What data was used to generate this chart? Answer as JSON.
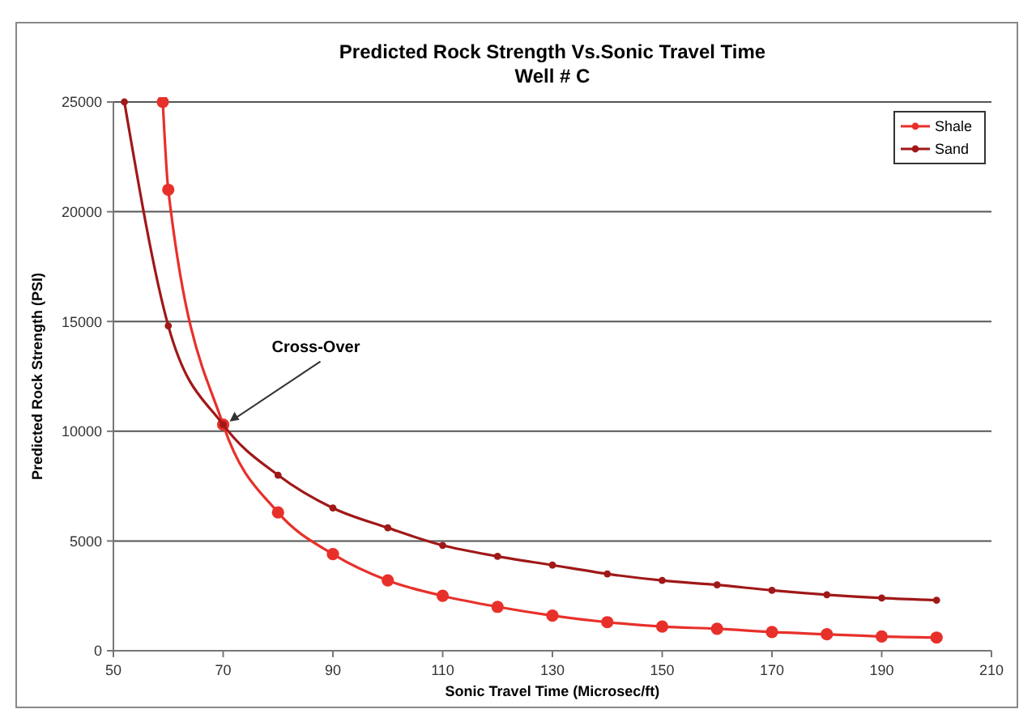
{
  "chart_data": {
    "type": "line",
    "title": "Predicted Rock Strength Vs.Sonic Travel Time",
    "subtitle": "Well # C",
    "xlabel": "Sonic Travel Time (Microsec/ft)",
    "ylabel": "Predicted Rock Strength (PSI)",
    "x": [
      59,
      60,
      70,
      80,
      90,
      100,
      110,
      120,
      130,
      140,
      150,
      160,
      170,
      180,
      190,
      200
    ],
    "series": [
      {
        "name": "Shale",
        "color": "#e8302a",
        "values": [
          25000,
          21000,
          10300,
          6300,
          4400,
          3200,
          2500,
          2000,
          1600,
          1300,
          1100,
          1000,
          850,
          750,
          650,
          600
        ]
      },
      {
        "name": "Sand",
        "color": "#a01818",
        "x": [
          52,
          60,
          70,
          80,
          90,
          100,
          110,
          120,
          130,
          140,
          150,
          160,
          170,
          180,
          190,
          200
        ],
        "values": [
          25000,
          14800,
          10300,
          8000,
          6500,
          5600,
          4800,
          4300,
          3900,
          3500,
          3200,
          3000,
          2750,
          2550,
          2400,
          2300
        ]
      }
    ],
    "xlim": [
      50,
      210
    ],
    "xticks": [
      50,
      70,
      90,
      110,
      130,
      150,
      170,
      190,
      210
    ],
    "ylim": [
      0,
      25000
    ],
    "yticks": [
      0,
      5000,
      10000,
      15000,
      20000,
      25000
    ],
    "grid": "y",
    "legend": "top right",
    "marker": "circle",
    "line_style": "solid",
    "annotations": [
      {
        "text": "Cross-Over",
        "x": 70,
        "y": 10300
      }
    ]
  }
}
